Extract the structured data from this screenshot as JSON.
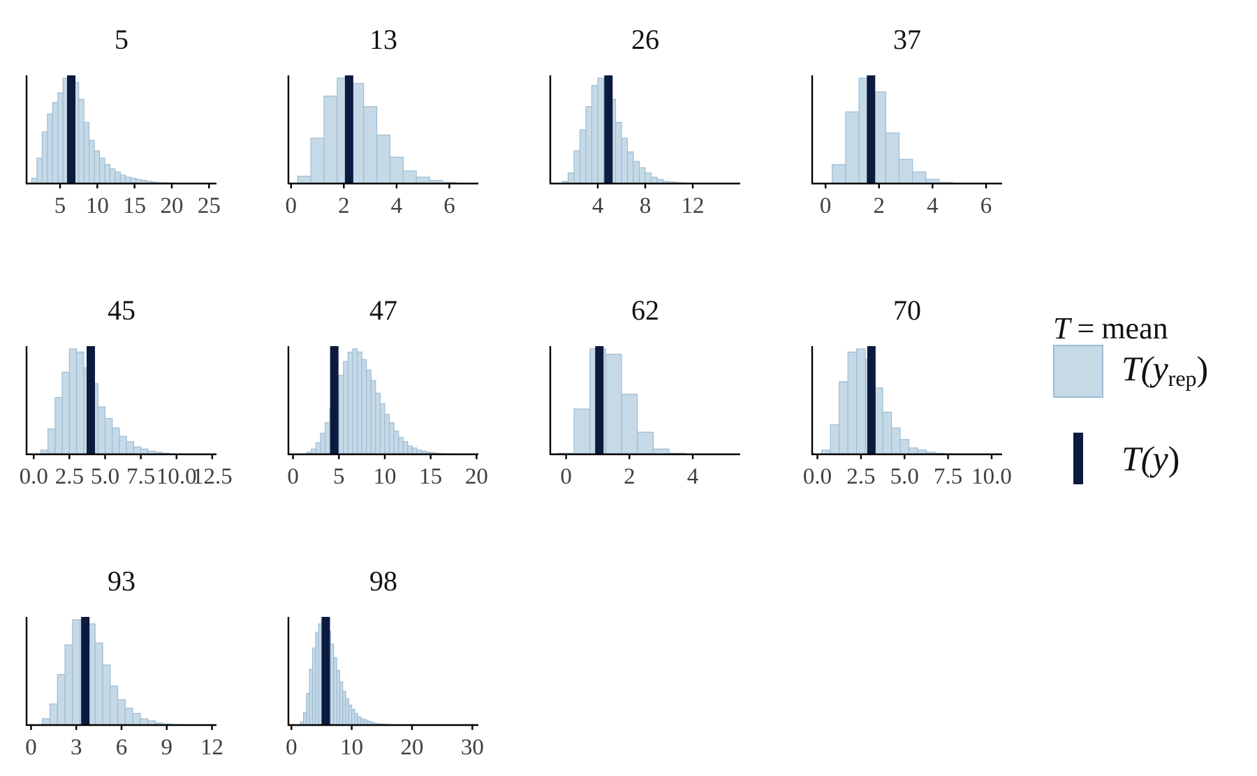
{
  "colors": {
    "rep_fill": "#c6d9e6",
    "rep_stroke": "#9dbcd4",
    "obs": "#0b1a3e"
  },
  "legend": {
    "stat_symbol": "T",
    "equals": "=",
    "stat_name": "mean",
    "rep_open": "T(",
    "rep_var": "y",
    "rep_sub": "rep",
    "rep_close": ")",
    "obs_open": "T(",
    "obs_var": "y",
    "obs_close": ")"
  },
  "chart_data": [
    {
      "type": "histogram",
      "title": "5",
      "xlim": [
        0.5,
        26
      ],
      "xticks": [
        "5",
        "10",
        "15",
        "20",
        "25"
      ],
      "xtick_values": [
        5,
        10,
        15,
        20,
        25
      ],
      "observed": 6.5,
      "bin_start": 1.2,
      "bin_width": 0.7,
      "counts": [
        5,
        24,
        49,
        66,
        77,
        86,
        100,
        100,
        96,
        80,
        58,
        41,
        31,
        24,
        18,
        14,
        11,
        8,
        6,
        5,
        4,
        3,
        2,
        1.5,
        1,
        0.8,
        0.5,
        0.3,
        0.2,
        0.1
      ]
    },
    {
      "type": "histogram",
      "title": "13",
      "xlim": [
        -0.1,
        7.1
      ],
      "xticks": [
        "0",
        "2",
        "4",
        "6"
      ],
      "xtick_values": [
        0,
        2,
        4,
        6
      ],
      "observed": 2.2,
      "bin_start": 0.25,
      "bin_width": 0.5,
      "counts": [
        7,
        43,
        83,
        100,
        95,
        73,
        46,
        25,
        12,
        6,
        3,
        1
      ]
    },
    {
      "type": "histogram",
      "title": "26",
      "xlim": [
        0,
        16
      ],
      "xticks": [
        "4",
        "8",
        "12"
      ],
      "xtick_values": [
        4,
        8,
        12
      ],
      "observed": 4.9,
      "bin_start": 1.0,
      "bin_width": 0.5,
      "counts": [
        2,
        10,
        31,
        51,
        73,
        93,
        100,
        94,
        80,
        58,
        43,
        30,
        21,
        15,
        10,
        6,
        4,
        2,
        1.5,
        1,
        0.5,
        0.3
      ]
    },
    {
      "type": "histogram",
      "title": "37",
      "xlim": [
        -0.5,
        6.6
      ],
      "xticks": [
        "0",
        "2",
        "4",
        "6"
      ],
      "xtick_values": [
        0,
        2,
        4,
        6
      ],
      "observed": 1.7,
      "bin_start": 0.25,
      "bin_width": 0.5,
      "counts": [
        18,
        68,
        100,
        87,
        48,
        23,
        11,
        4,
        1
      ]
    },
    {
      "type": "histogram",
      "title": "45",
      "xlim": [
        -0.5,
        12.8
      ],
      "xticks": [
        "0.0",
        "2.5",
        "5.0",
        "7.5",
        "10.0",
        "12.5"
      ],
      "xtick_values": [
        0,
        2.5,
        5,
        7.5,
        10,
        12.5
      ],
      "observed": 4.0,
      "bin_start": 0.5,
      "bin_width": 0.5,
      "counts": [
        4,
        24,
        54,
        78,
        100,
        97,
        82,
        67,
        45,
        34,
        25,
        17,
        12,
        7,
        5,
        3,
        2,
        1,
        0.5,
        0.3,
        0.2,
        0.1
      ]
    },
    {
      "type": "histogram",
      "title": "47",
      "xlim": [
        -0.5,
        20.2
      ],
      "xticks": [
        "0",
        "5",
        "10",
        "15",
        "20"
      ],
      "xtick_values": [
        0,
        5,
        10,
        15,
        20
      ],
      "observed": 4.5,
      "bin_start": 1.5,
      "bin_width": 0.5,
      "counts": [
        2,
        5,
        11,
        20,
        30,
        43,
        58,
        75,
        88,
        97,
        100,
        97,
        90,
        80,
        70,
        58,
        48,
        38,
        30,
        22,
        16,
        12,
        8,
        6,
        4,
        3,
        2,
        1.5,
        1,
        0.7,
        0.5,
        0.3
      ]
    },
    {
      "type": "histogram",
      "title": "62",
      "xlim": [
        -0.5,
        5.5
      ],
      "xticks": [
        "0",
        "2",
        "4"
      ],
      "xtick_values": [
        0,
        2,
        4
      ],
      "observed": 1.05,
      "bin_start": -0.25,
      "bin_width": 0.5,
      "counts": [
        1,
        43,
        100,
        95,
        57,
        21,
        5,
        1
      ]
    },
    {
      "type": "histogram",
      "title": "70",
      "xlim": [
        -0.3,
        10.6
      ],
      "xticks": [
        "0.0",
        "2.5",
        "5.0",
        "7.5",
        "10.0"
      ],
      "xtick_values": [
        0,
        2.5,
        5,
        7.5,
        10
      ],
      "observed": 3.1,
      "bin_start": 0.25,
      "bin_width": 0.5,
      "counts": [
        4,
        28,
        69,
        97,
        100,
        90,
        63,
        40,
        25,
        14,
        6,
        4,
        2,
        1,
        0.5,
        0.3,
        0.2
      ]
    },
    {
      "type": "histogram",
      "title": "93",
      "xlim": [
        -0.3,
        12.3
      ],
      "xticks": [
        "0",
        "3",
        "6",
        "9",
        "12"
      ],
      "xtick_values": [
        0,
        3,
        6,
        9,
        12
      ],
      "observed": 3.6,
      "bin_start": 0.75,
      "bin_width": 0.5,
      "counts": [
        6,
        20,
        48,
        76,
        100,
        100,
        96,
        78,
        57,
        37,
        24,
        16,
        11,
        6,
        4,
        2,
        1,
        0.5,
        0.3,
        0.1
      ]
    },
    {
      "type": "histogram",
      "title": "98",
      "xlim": [
        -0.5,
        31
      ],
      "xticks": [
        "0",
        "10",
        "20",
        "30"
      ],
      "xtick_values": [
        0,
        10,
        20,
        30
      ],
      "observed": 5.7,
      "bin_start": 1.5,
      "bin_width": 0.5,
      "counts": [
        3,
        12,
        30,
        53,
        73,
        88,
        96,
        100,
        97,
        89,
        77,
        64,
        52,
        41,
        32,
        25,
        19,
        15,
        11,
        8,
        6,
        5,
        4,
        3,
        2,
        1.5,
        1,
        1,
        0.7,
        0.5,
        0.3,
        0.3,
        0.2,
        0.1,
        0.1
      ]
    }
  ]
}
